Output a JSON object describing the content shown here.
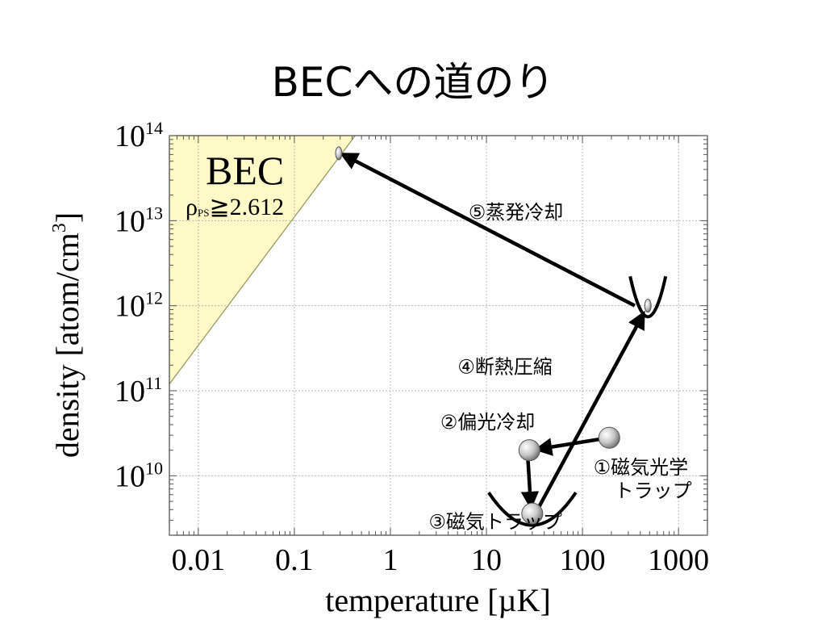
{
  "slide": {
    "title": "BECへの道のり"
  },
  "colors": {
    "bec_fill": "#fffac8",
    "bec_edge": "#9a9a60",
    "grid": "#b8b8b8",
    "arrow": "#000000",
    "atom": "#b8b8b8"
  },
  "chart_data": {
    "type": "scatter",
    "xscale": "log",
    "yscale": "log",
    "xlim": [
      0.005,
      2000
    ],
    "ylim": [
      2000000000.0,
      100000000000000.0
    ],
    "xlabel": "temperature [µK]",
    "ylabel_main": "density [atom/cm",
    "ylabel_sup": "3",
    "ylabel_tail": "]",
    "xticks": [
      {
        "value": 0.01,
        "label": "0.01"
      },
      {
        "value": 0.1,
        "label": "0.1"
      },
      {
        "value": 1,
        "label": "1"
      },
      {
        "value": 10,
        "label": "10"
      },
      {
        "value": 100,
        "label": "100"
      },
      {
        "value": 1000,
        "label": "1000"
      }
    ],
    "yticks": [
      {
        "value": 10000000000.0,
        "base": "10",
        "exp": "10"
      },
      {
        "value": 100000000000.0,
        "base": "10",
        "exp": "11"
      },
      {
        "value": 1000000000000.0,
        "base": "10",
        "exp": "12"
      },
      {
        "value": 10000000000000.0,
        "base": "10",
        "exp": "13"
      },
      {
        "value": 100000000000000.0,
        "base": "10",
        "exp": "14"
      }
    ],
    "bec_region": {
      "label": "BEC",
      "condition_symbol": "ρ",
      "condition_sub": "PS",
      "condition_rest": "≧2.612",
      "boundary": [
        [
          0.005,
          120000000000.0
        ],
        [
          0.43,
          100000000000000.0
        ]
      ]
    },
    "atoms": [
      {
        "name": "mot",
        "x": 190,
        "y": 28000000000.0,
        "kind": "ball"
      },
      {
        "name": "polarization-cooled",
        "x": 28,
        "y": 20000000000.0,
        "kind": "ball"
      },
      {
        "name": "magnetic-trap",
        "x": 30,
        "y": 3600000000.0,
        "kind": "ball"
      },
      {
        "name": "compressed",
        "x": 480,
        "y": 1000000000000.0,
        "kind": "small"
      },
      {
        "name": "condensate",
        "x": 0.29,
        "y": 62000000000000.0,
        "kind": "small"
      }
    ],
    "traps": [
      {
        "name": "magnetic-trap",
        "x": 30,
        "y": 3600000000.0
      },
      {
        "name": "compression-trap",
        "x": 480,
        "y": 1200000000000.0
      }
    ],
    "arrows": [
      {
        "from": [
          170,
          27500000000.0
        ],
        "to": [
          34,
          20500000000.0
        ]
      },
      {
        "from": [
          27,
          16000000000.0
        ],
        "to": [
          29,
          4400000000.0
        ]
      },
      {
        "from": [
          34,
          4000000000.0
        ],
        "to": [
          430,
          800000000000.0
        ]
      },
      {
        "from": [
          350,
          1000000000000.0
        ],
        "to": [
          0.32,
          60000000000000.0
        ]
      }
    ],
    "steps": [
      {
        "lines": [
          "①磁気光学",
          "トラップ"
        ],
        "x": 130,
        "y": 10500000000.0,
        "anchor": "start"
      },
      {
        "lines": [
          "②偏光冷却"
        ],
        "x": 3.3,
        "y": 36000000000.0,
        "anchor": "start"
      },
      {
        "lines": [
          "③磁気トラップ"
        ],
        "x": 2.5,
        "y": 2400000000.0,
        "anchor": "start"
      },
      {
        "lines": [
          "④断熱圧縮"
        ],
        "x": 5,
        "y": 160000000000.0,
        "anchor": "start"
      },
      {
        "lines": [
          "⑤蒸発冷却"
        ],
        "x": 6.5,
        "y": 10500000000000.0,
        "anchor": "start"
      }
    ]
  }
}
